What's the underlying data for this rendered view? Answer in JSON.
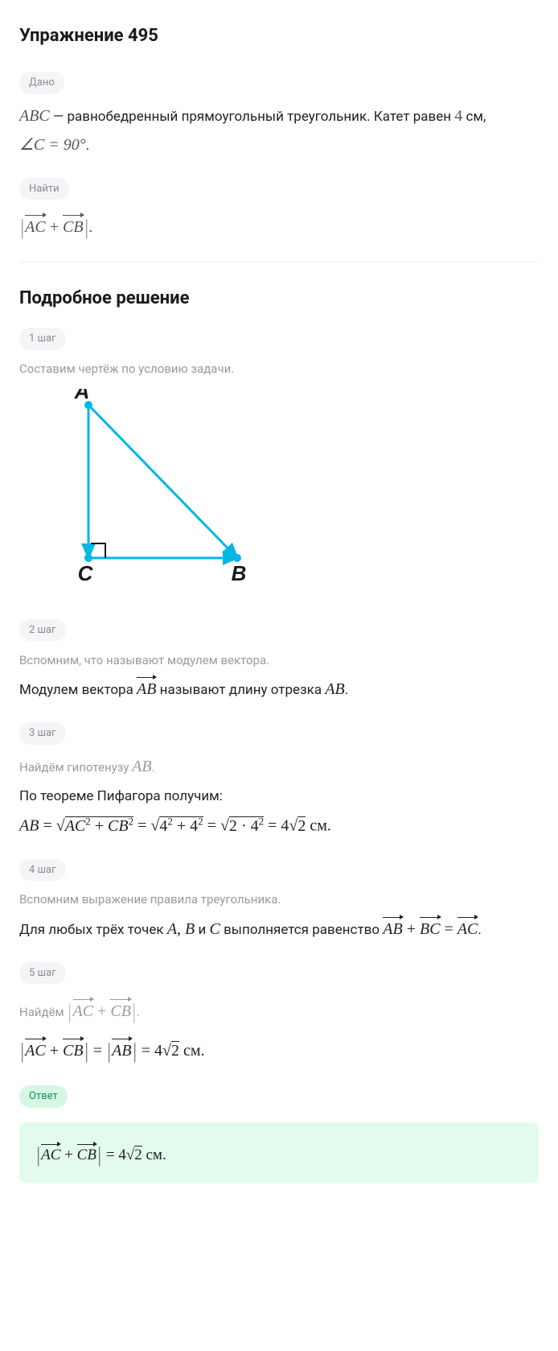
{
  "title": "Упражнение 495",
  "given": {
    "pill": "Дано",
    "line1_pre": "ABC",
    "line1_mid": " — равнобедренный прямоугольный треугольник. Катет равен ",
    "line1_val": "4",
    "line1_post": " см,",
    "line2_angle": "∠C = 90°",
    "line2_dot": "."
  },
  "find": {
    "pill": "Найти",
    "expr_open": "|",
    "expr_v1": "AC",
    "expr_plus": " + ",
    "expr_v2": "CB",
    "expr_close": "|",
    "expr_dot": "."
  },
  "solution_title": "Подробное решение",
  "steps": {
    "s1": {
      "pill": "1 шаг",
      "gray": "Составим чертёж по условию задачи."
    },
    "s2": {
      "pill": "2 шаг",
      "gray": "Вспомним, что называют модулем вектора.",
      "line_a": "Модулем вектора ",
      "line_vec": "AB",
      "line_b": " называют длину отрезка ",
      "line_seg": "AB",
      "line_c": "."
    },
    "s3": {
      "pill": "3 шаг",
      "gray_a": "Найдём гипотенузу ",
      "gray_seg": "AB",
      "gray_b": ".",
      "line1": "По теореме Пифагора получим:",
      "eq_lhs": "AB",
      "eq_eq1": " = ",
      "eq_sq1_in": "AC",
      "eq_sq1_sup": "2",
      "eq_plus1": " + ",
      "eq_sq1_in2": "CB",
      "eq_sq1_sup2": "2",
      "eq_eq2": " = ",
      "eq_sq2": "4",
      "eq_sq2_sup": "2",
      "eq_plus2": " + ",
      "eq_sq2b": "4",
      "eq_sq2b_sup": "2",
      "eq_eq3": " = ",
      "eq_sq3_a": "2 · 4",
      "eq_sq3_sup": "2",
      "eq_eq4": " = 4",
      "eq_sq4": "2",
      "eq_unit": " см."
    },
    "s4": {
      "pill": "4 шаг",
      "gray": "Вспомним выражение правила треугольника.",
      "line_a": "Для любых трёх точек ",
      "line_pts": "A, B",
      "line_and": " и ",
      "line_ptc": "C",
      "line_b": " выполняется равенство ",
      "v1": "AB",
      "plus1": " + ",
      "v2": "BC",
      "eqs": " = ",
      "v3": "AC",
      "dot": "."
    },
    "s5": {
      "pill": "5 шаг",
      "gray_a": "Найдём ",
      "gray_open": "|",
      "gray_v1": "AC",
      "gray_plus": " + ",
      "gray_v2": "CB",
      "gray_close": "|",
      "gray_b": ".",
      "eq_open1": "|",
      "eq_v1": "AC",
      "eq_plus": " + ",
      "eq_v2": "CB",
      "eq_close1": "|",
      "eq_eq1": " = ",
      "eq_open2": "|",
      "eq_v3": "AB",
      "eq_close2": "|",
      "eq_eq2": " = 4",
      "eq_sq": "2",
      "eq_unit": " см."
    }
  },
  "answer": {
    "pill": "Ответ",
    "open": "|",
    "v1": "AC",
    "plus": " + ",
    "v2": "CB",
    "close": "|",
    "eq": " = 4",
    "sq": "2",
    "unit": " см."
  },
  "figure": {
    "stroke": "#00b8e6",
    "fill_dot": "#00b8e6",
    "text_color": "#1a1a1a",
    "label_A": "A",
    "label_B": "B",
    "label_C": "C",
    "A": [
      60,
      20
    ],
    "B": [
      245,
      210
    ],
    "C": [
      60,
      210
    ],
    "angle_box": 18,
    "font_size": 26,
    "font_weight": 700,
    "dot_r": 5,
    "line_w": 3
  }
}
